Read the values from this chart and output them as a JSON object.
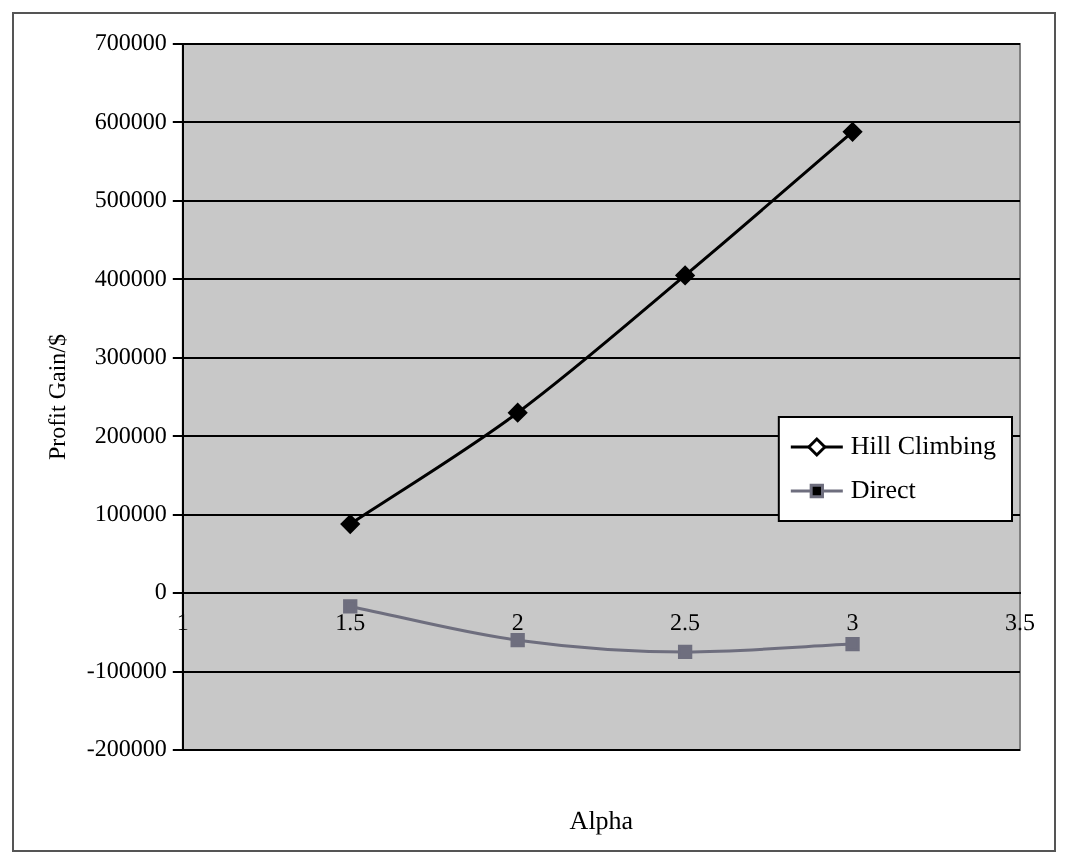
{
  "chart_data": {
    "type": "line",
    "xlabel": "Alpha",
    "ylabel": "Profit Gain/$",
    "xlim": [
      1,
      3.5
    ],
    "xticks": [
      1,
      1.5,
      2,
      2.5,
      3,
      3.5
    ],
    "ylim": [
      -200000,
      700000
    ],
    "yticks": [
      -200000,
      -100000,
      0,
      100000,
      200000,
      300000,
      400000,
      500000,
      600000,
      700000
    ],
    "grid": "y",
    "legend": "right",
    "line_style": "solid",
    "series": [
      {
        "name": "Hill Climbing",
        "color": "#000000",
        "marker": "diamond",
        "x": [
          1.5,
          2,
          2.5,
          3
        ],
        "values": [
          88000,
          230000,
          405000,
          588000
        ]
      },
      {
        "name": "Direct",
        "color": "#6e6e7e",
        "marker": "square",
        "x": [
          1.5,
          2,
          2.5,
          3
        ],
        "values": [
          -17000,
          -60000,
          -75000,
          -65000
        ]
      }
    ]
  }
}
